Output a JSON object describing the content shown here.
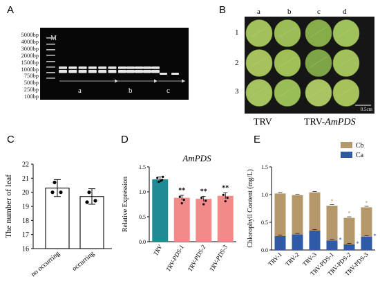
{
  "panels": {
    "A": {
      "letter": "A",
      "marker_label": "M",
      "ladder": [
        "5000bp",
        "4000bp",
        "3000bp",
        "2000bp",
        "1500bp",
        "1000bp",
        "750bp",
        "500bp",
        "250bp",
        "100bp"
      ],
      "groups": [
        "a",
        "b",
        "c"
      ],
      "colors": {
        "gel": "#070707",
        "band": "#e8e8e8"
      }
    },
    "B": {
      "letter": "B",
      "columns": [
        "a",
        "b",
        "c",
        "d"
      ],
      "rows": [
        "1",
        "2",
        "3"
      ],
      "scale_bar": "0.5cm",
      "group_labels": {
        "trv": "TRV",
        "trv_pds_prefix": "TRV-",
        "trv_pds_gene": "AmPDS"
      },
      "colors": {
        "leaf": "#9fbf52",
        "background": "#161616"
      }
    },
    "C": {
      "letter": "C"
    },
    "D": {
      "letter": "D"
    },
    "E": {
      "letter": "E"
    }
  },
  "chart_data": [
    {
      "type": "bar",
      "panel": "C",
      "ylabel": "The number of leaf",
      "categories": [
        "no occurring",
        "occurring"
      ],
      "values": [
        20.3,
        19.7
      ],
      "errors": [
        0.6,
        0.55
      ],
      "points": [
        [
          20.7,
          20.0,
          20.0
        ],
        [
          20.0,
          19.4,
          19.3
        ]
      ],
      "ylim": [
        16,
        22
      ],
      "yticks": [
        16,
        17,
        18,
        19,
        20,
        21,
        22
      ],
      "colors": {
        "bar_fill": "#ffffff",
        "bar_edge": "#000000"
      }
    },
    {
      "type": "bar",
      "panel": "D",
      "title": "AmPDS",
      "ylabel": "Relative Expression",
      "categories": [
        "TRV",
        "TRV-PDS-1",
        "TRV-PDS-2",
        "TRV-PDS-3"
      ],
      "values": [
        1.25,
        0.88,
        0.86,
        0.92
      ],
      "errors": [
        0.05,
        0.05,
        0.05,
        0.06
      ],
      "significance": [
        "",
        "**",
        "**",
        "**"
      ],
      "ylim": [
        0.0,
        1.5
      ],
      "yticks": [
        0.0,
        0.5,
        1.0,
        1.5
      ],
      "colors": {
        "TRV": "#1e8b95",
        "TRV-PDS": "#f28a8a"
      }
    },
    {
      "type": "bar",
      "panel": "E",
      "ylabel": "Chlorophyll Content (mg/L)",
      "categories": [
        "TRV-1",
        "TRV-2",
        "TRV-3",
        "TRV-PDS-1",
        "TRV-PDS-2",
        "TRV-PDS-3"
      ],
      "series": [
        {
          "name": "Ca",
          "values": [
            0.25,
            0.28,
            0.35,
            0.17,
            0.1,
            0.24
          ],
          "color": "#2f5aa8"
        },
        {
          "name": "Cb",
          "values": [
            0.77,
            0.71,
            0.69,
            0.63,
            0.48,
            0.53
          ],
          "color": "#b5986a"
        }
      ],
      "significance_top": [
        "",
        "",
        "",
        "*",
        "*",
        "*"
      ],
      "significance_ca": [
        "",
        "",
        "",
        "*",
        "*",
        "*"
      ],
      "ylim": [
        0.0,
        1.5
      ],
      "yticks": [
        0.0,
        0.5,
        1.0,
        1.5
      ],
      "legend": [
        "Cb",
        "Ca"
      ],
      "legend_position": "top-right"
    }
  ]
}
